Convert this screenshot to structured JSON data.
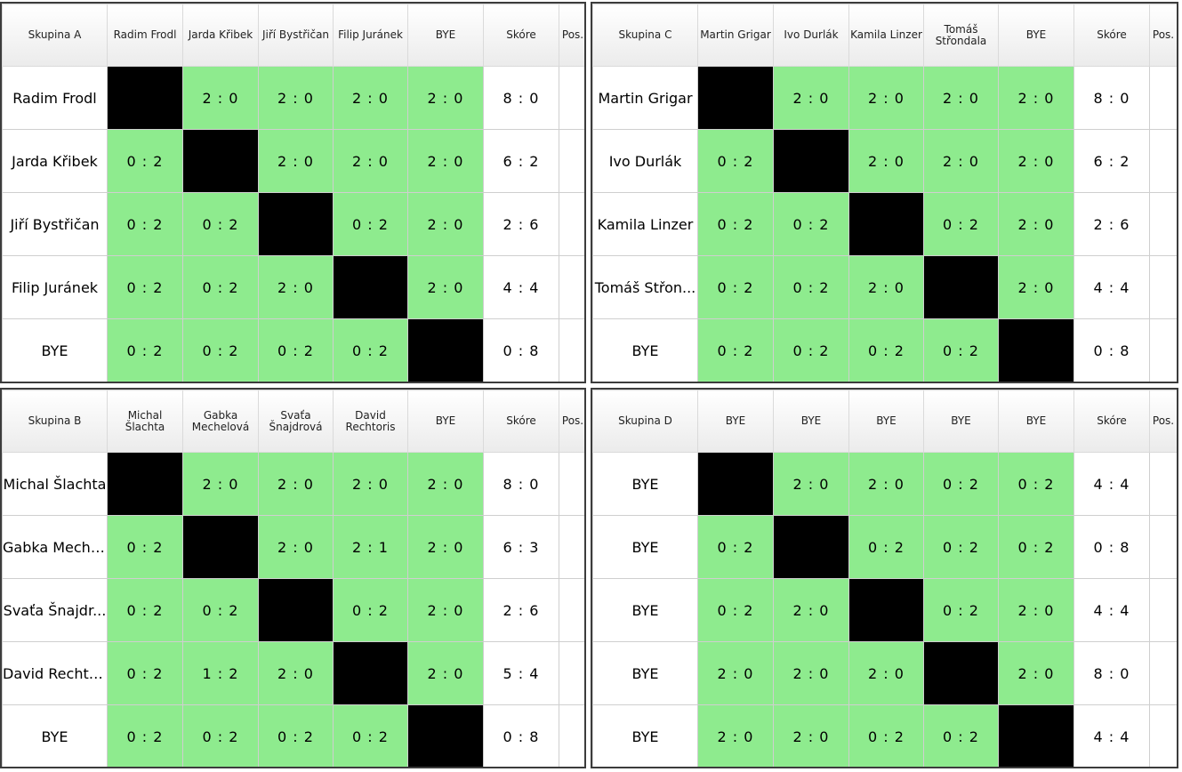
{
  "groups": [
    {
      "id": "a",
      "title": "Skupina A",
      "columns": [
        "Radim Frodl",
        "Jarda Křibek",
        "Jiří Bystřičan",
        "Filip Juránek",
        "BYE"
      ],
      "rows": [
        {
          "name": "Radim Frodl",
          "results": [
            null,
            "2 : 0",
            "2 : 0",
            "2 : 0",
            "2 : 0"
          ],
          "score": "8 : 0",
          "pos": ""
        },
        {
          "name": "Jarda Křibek",
          "results": [
            "0 : 2",
            null,
            "2 : 0",
            "2 : 0",
            "2 : 0"
          ],
          "score": "6 : 2",
          "pos": ""
        },
        {
          "name": "Jiří Bystřičan",
          "results": [
            "0 : 2",
            "0 : 2",
            null,
            "0 : 2",
            "2 : 0"
          ],
          "score": "2 : 6",
          "pos": ""
        },
        {
          "name": "Filip Juránek",
          "results": [
            "0 : 2",
            "0 : 2",
            "2 : 0",
            null,
            "2 : 0"
          ],
          "score": "4 : 4",
          "pos": ""
        },
        {
          "name": "BYE",
          "results": [
            "0 : 2",
            "0 : 2",
            "0 : 2",
            "0 : 2",
            null
          ],
          "score": "0 : 8",
          "pos": ""
        }
      ]
    },
    {
      "id": "c",
      "title": "Skupina C",
      "columns": [
        "Martin Grigar",
        "Ivo Durlák",
        "Kamila Linzer",
        "Tomáš Střondala",
        "BYE"
      ],
      "rows": [
        {
          "name": "Martin Grigar",
          "results": [
            null,
            "2 : 0",
            "2 : 0",
            "2 : 0",
            "2 : 0"
          ],
          "score": "8 : 0",
          "pos": ""
        },
        {
          "name": "Ivo Durlák",
          "results": [
            "0 : 2",
            null,
            "2 : 0",
            "2 : 0",
            "2 : 0"
          ],
          "score": "6 : 2",
          "pos": ""
        },
        {
          "name": "Kamila Linzer",
          "results": [
            "0 : 2",
            "0 : 2",
            null,
            "0 : 2",
            "2 : 0"
          ],
          "score": "2 : 6",
          "pos": ""
        },
        {
          "name": "Tomáš Střon...",
          "results": [
            "0 : 2",
            "0 : 2",
            "2 : 0",
            null,
            "2 : 0"
          ],
          "score": "4 : 4",
          "pos": ""
        },
        {
          "name": "BYE",
          "results": [
            "0 : 2",
            "0 : 2",
            "0 : 2",
            "0 : 2",
            null
          ],
          "score": "0 : 8",
          "pos": ""
        }
      ]
    },
    {
      "id": "b",
      "title": "Skupina B",
      "columns": [
        "Michal Šlachta",
        "Gabka Mechelová",
        "Svaťa Šnajdrová",
        "David Rechtoris",
        "BYE"
      ],
      "rows": [
        {
          "name": "Michal Šlachta",
          "results": [
            null,
            "2 : 0",
            "2 : 0",
            "2 : 0",
            "2 : 0"
          ],
          "score": "8 : 0",
          "pos": ""
        },
        {
          "name": "Gabka Meche...",
          "results": [
            "0 : 2",
            null,
            "2 : 0",
            "2 : 1",
            "2 : 0"
          ],
          "score": "6 : 3",
          "pos": ""
        },
        {
          "name": "Svaťa Šnajdr...",
          "results": [
            "0 : 2",
            "0 : 2",
            null,
            "0 : 2",
            "2 : 0"
          ],
          "score": "2 : 6",
          "pos": ""
        },
        {
          "name": "David Rechto...",
          "results": [
            "0 : 2",
            "1 : 2",
            "2 : 0",
            null,
            "2 : 0"
          ],
          "score": "5 : 4",
          "pos": ""
        },
        {
          "name": "BYE",
          "results": [
            "0 : 2",
            "0 : 2",
            "0 : 2",
            "0 : 2",
            null
          ],
          "score": "0 : 8",
          "pos": ""
        }
      ]
    },
    {
      "id": "d",
      "title": "Skupina D",
      "columns": [
        "BYE",
        "BYE",
        "BYE",
        "BYE",
        "BYE"
      ],
      "rows": [
        {
          "name": "BYE",
          "results": [
            null,
            "2 : 0",
            "2 : 0",
            "0 : 2",
            "0 : 2"
          ],
          "score": "4 : 4",
          "pos": ""
        },
        {
          "name": "BYE",
          "results": [
            "0 : 2",
            null,
            "0 : 2",
            "0 : 2",
            "0 : 2"
          ],
          "score": "0 : 8",
          "pos": ""
        },
        {
          "name": "BYE",
          "results": [
            "0 : 2",
            "2 : 0",
            null,
            "0 : 2",
            "2 : 0"
          ],
          "score": "4 : 4",
          "pos": ""
        },
        {
          "name": "BYE",
          "results": [
            "2 : 0",
            "2 : 0",
            "2 : 0",
            null,
            "2 : 0"
          ],
          "score": "8 : 0",
          "pos": ""
        },
        {
          "name": "BYE",
          "results": [
            "2 : 0",
            "2 : 0",
            "0 : 2",
            "0 : 2",
            null
          ],
          "score": "4 : 4",
          "pos": ""
        }
      ]
    }
  ],
  "labels": {
    "score": "Skóre",
    "position": "Pos."
  },
  "colors": {
    "win_cell": "#8eeb8e",
    "self_cell": "#000000",
    "header": "#ebebeb",
    "border": "#3c3c3c"
  }
}
